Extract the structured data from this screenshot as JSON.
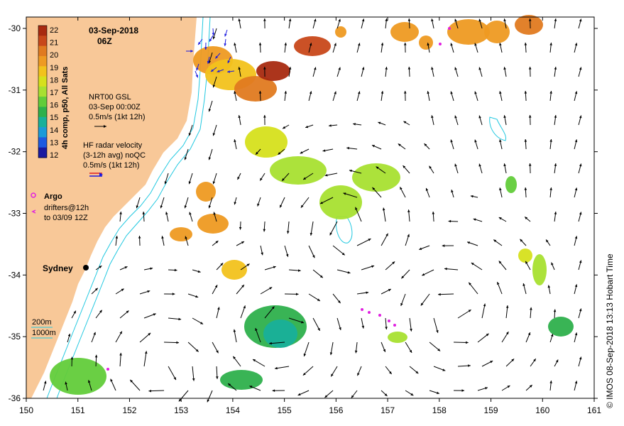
{
  "map": {
    "date": "03-Sep-2018",
    "hour": "06Z",
    "lon_range": [
      150,
      161
    ],
    "lat_range": [
      -36,
      -29.8
    ],
    "lon_ticks": [
      "150",
      "151",
      "152",
      "153",
      "154",
      "155",
      "156",
      "157",
      "158",
      "159",
      "160",
      "161"
    ],
    "lat_ticks": [
      "-30",
      "-31",
      "-32",
      "-33",
      "-34",
      "-35",
      "-36"
    ],
    "colorbar": {
      "label": "4h comp, p50, All Sats",
      "ticks": [
        "22",
        "21",
        "20",
        "19",
        "18",
        "17",
        "16",
        "15",
        "14",
        "13",
        "12"
      ],
      "colors": [
        "#a82a10",
        "#c8481a",
        "#e07a20",
        "#ee9a22",
        "#f2c21c",
        "#d6e01c",
        "#a8e030",
        "#62cc3a",
        "#2eb04c",
        "#18b09a",
        "#1a9ad8",
        "#1e5ae0",
        "#1a1aa0"
      ]
    },
    "legend": {
      "gsl_title": "NRT00 GSL",
      "gsl_time": "03-Sep 00:00Z",
      "gsl_scale": "0.5m/s (1kt 12h)",
      "hf_title": "HF radar velocity",
      "hf_sub": "(3-12h avg) noQC",
      "hf_scale": "0.5m/s (1kt 12h)",
      "argo": "Argo",
      "drifters_line1": "drifters@12h",
      "drifters_line2": "to 03/09 12Z",
      "depth_200": "200m",
      "depth_1000": "1000m"
    },
    "place": "Sydney",
    "credit": "© IMOS 08-Sep-2018 13:13 Hobart Time",
    "colors": {
      "land": "#f8c898",
      "contour": "#20c8e0",
      "drifter": "#e020e0",
      "arrow": "#000000",
      "hf_arrow": "#1a1ae0"
    }
  }
}
